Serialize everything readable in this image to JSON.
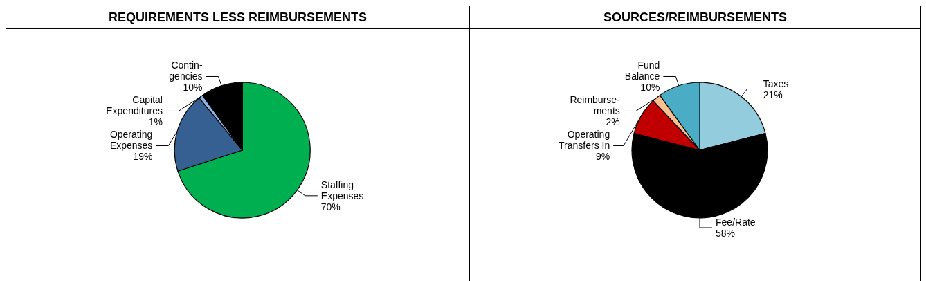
{
  "chart_data": [
    {
      "type": "pie",
      "title": "REQUIREMENTS LESS REIMBURSEMENTS",
      "categories": [
        "Staffing\nExpenses",
        "Operating\nExpenses",
        "Capital\nExpenditures",
        "Contin-\ngencies"
      ],
      "values": [
        70,
        19,
        1,
        10
      ],
      "value_labels": [
        "70%",
        "19%",
        "1%",
        "10%"
      ],
      "colors": [
        "#00b050",
        "#376092",
        "#8db4e2",
        "#000000"
      ]
    },
    {
      "type": "pie",
      "title": "SOURCES/REIMBURSEMENTS",
      "categories": [
        "Taxes",
        "Fee/Rate",
        "Operating\nTransfers In",
        "Reimburse-\nments",
        "Fund\nBalance"
      ],
      "values": [
        21,
        58,
        9,
        2,
        10
      ],
      "value_labels": [
        "21%",
        "58%",
        "9%",
        "2%",
        "10%"
      ],
      "colors": [
        "#93cddd",
        "#000000",
        "#c00000",
        "#fac090",
        "#4bacc6"
      ]
    }
  ]
}
